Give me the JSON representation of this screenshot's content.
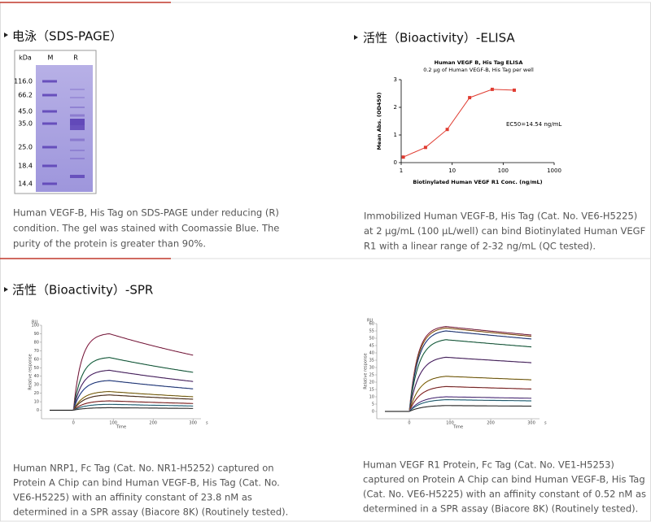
{
  "sections": [
    {
      "heading": "电泳（SDS-PAGE）",
      "figure": {
        "unit": "kDa",
        "lanes": [
          "M",
          "R"
        ],
        "markers": [
          "116.0",
          "66.2",
          "45.0",
          "35.0",
          "25.0",
          "18.4",
          "14.4"
        ]
      },
      "caption": [
        "Human VEGF-B, His Tag on SDS-PAGE under reducing (R)",
        "condition. The gel was stained with Coomassie Blue. The",
        "purity of the protein is greater than 90%."
      ]
    },
    {
      "heading": "活性（Bioactivity）-ELISA",
      "chart_data": {
        "type": "scatter",
        "title": "Human VEGF B, His Tag ELISA",
        "subtitle": "0.2 μg of Human VEGF-B, His Tag per well",
        "x_label": "Biotinylated Human VEGF R1 Conc. (ng/mL)",
        "y_label": "Mean Abs. (OD450)",
        "annotation": "EC50=14.54 ng/mL",
        "x": [
          1.1,
          3,
          8,
          22,
          61,
          165
        ],
        "values": [
          0.2,
          0.55,
          1.2,
          2.35,
          2.65,
          2.62
        ],
        "color": "#e03c31",
        "xlim": [
          1,
          1000
        ],
        "xticks": [
          1,
          10,
          100,
          1000
        ],
        "log_x": true,
        "ylim": [
          0,
          3
        ],
        "yticks": [
          0,
          1,
          2,
          3
        ]
      },
      "caption": [
        "Immobilized Human VEGF-B, His Tag (Cat. No. VE6-H5225)",
        "at 2 μg/mL (100 μL/well) can bind Biotinylated Human VEGF",
        "R1 with a linear range of 2-32 ng/mL (QC tested)."
      ]
    },
    {
      "heading": "活性（Bioactivity）-SPR",
      "charts": [
        {
          "type": "sensorgram",
          "y_unit": "RU",
          "x_unit": "s",
          "x_label": "Time",
          "y_label": "Relative response",
          "xlim": [
            -80,
            320
          ],
          "xticks": [
            0,
            100,
            200,
            300
          ],
          "ylim": [
            -10,
            100
          ],
          "yticks": [
            0,
            10,
            20,
            30,
            40,
            50,
            60,
            70,
            80,
            90,
            100
          ],
          "series": [
            {
              "color": "#d4477a",
              "values": [
                90
              ]
            },
            {
              "color": "#2f9a6a",
              "values": [
                62
              ]
            },
            {
              "color": "#7b3fa0",
              "values": [
                47
              ]
            },
            {
              "color": "#3a5fc8",
              "values": [
                35
              ]
            },
            {
              "color": "#c8a020",
              "values": [
                22
              ]
            },
            {
              "color": "#7a4a2a",
              "values": [
                18
              ]
            },
            {
              "color": "#d04040",
              "values": [
                11
              ]
            },
            {
              "color": "#3aa0c0",
              "values": [
                7
              ]
            },
            {
              "color": "#555555",
              "values": [
                3
              ]
            }
          ]
        },
        {
          "type": "sensorgram",
          "y_unit": "RU",
          "x_unit": "s",
          "x_label": "Time",
          "y_label": "Relative response",
          "xlim": [
            -80,
            320
          ],
          "xticks": [
            0,
            100,
            200,
            300
          ],
          "ylim": [
            -5,
            60
          ],
          "yticks": [
            0,
            5,
            10,
            15,
            20,
            25,
            30,
            35,
            40,
            45,
            50,
            55,
            60
          ],
          "series": [
            {
              "color": "#d4477a",
              "values": [
                58
              ]
            },
            {
              "color": "#e0902a",
              "values": [
                57
              ]
            },
            {
              "color": "#3a5fc8",
              "values": [
                55
              ]
            },
            {
              "color": "#2f9a6a",
              "values": [
                49
              ]
            },
            {
              "color": "#7b3fa0",
              "values": [
                37
              ]
            },
            {
              "color": "#c8a020",
              "values": [
                24
              ]
            },
            {
              "color": "#d04040",
              "values": [
                17
              ]
            },
            {
              "color": "#8a5ad0",
              "values": [
                10
              ]
            },
            {
              "color": "#3aa0c0",
              "values": [
                8
              ]
            },
            {
              "color": "#555555",
              "values": [
                4
              ]
            }
          ]
        }
      ],
      "captions": [
        [
          "Human NRP1, Fc Tag (Cat. No. NR1-H5252) captured on",
          "Protein A Chip can bind Human VEGF-B, His Tag (Cat. No.",
          "VE6-H5225) with an affinity constant of 23.8 nM as",
          "determined in a SPR assay (Biacore 8K) (Routinely tested)."
        ],
        [
          "Human VEGF R1 Protein, Fc Tag (Cat. No. VE1-H5253)",
          "captured on Protein A Chip can bind Human VEGF-B, His Tag",
          "(Cat. No. VE6-H5225) with an affinity constant of 0.52 nM as",
          "determined in a SPR assay (Biacore 8K) (Routinely tested)."
        ]
      ]
    }
  ]
}
